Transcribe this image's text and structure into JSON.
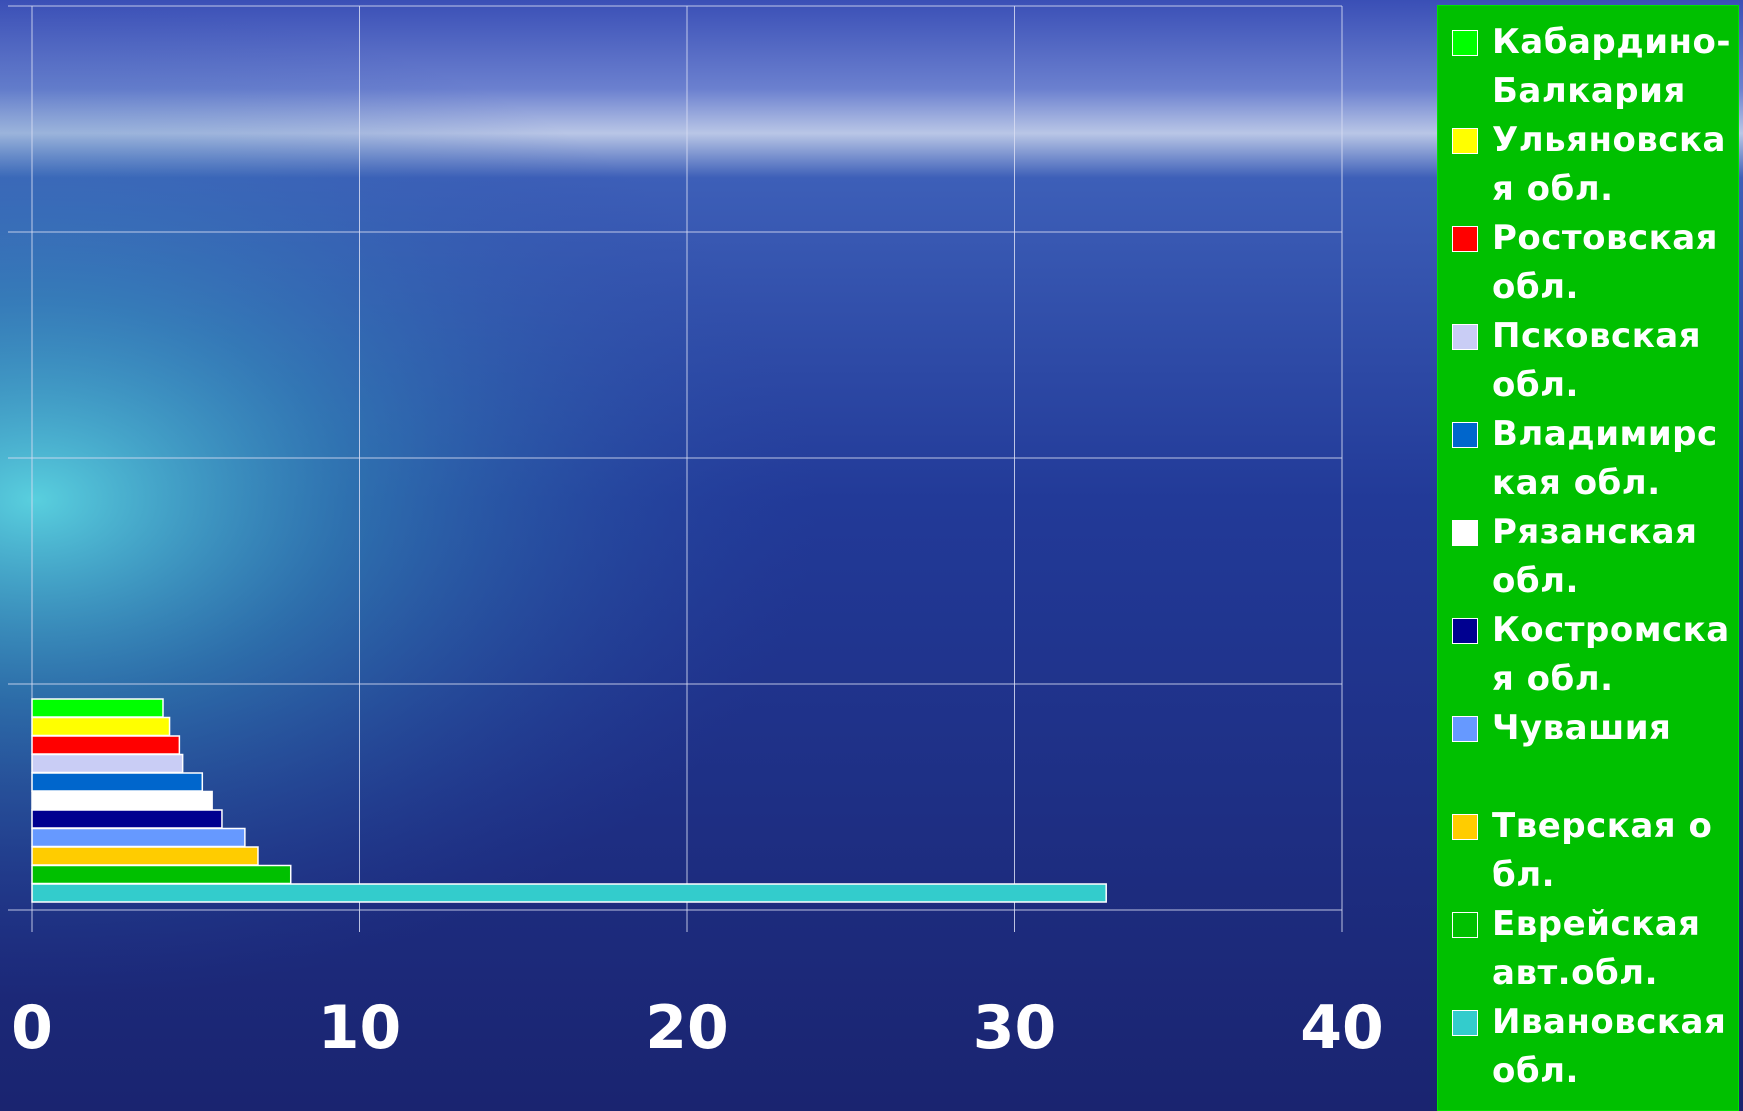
{
  "chart_data": {
    "type": "bar",
    "orientation": "horizontal",
    "xlim": [
      0,
      40
    ],
    "x_ticks": [
      "0",
      "10",
      "20",
      "30",
      "40"
    ],
    "grid": true,
    "legend_position": "right",
    "series": [
      {
        "name": "Кабардино-Балкария",
        "value": 4.0,
        "color": "#00ff00"
      },
      {
        "name": "Ульяновская обл.",
        "value": 4.2,
        "color": "#ffff00"
      },
      {
        "name": "Ростовская обл.",
        "value": 4.5,
        "color": "#ff0000"
      },
      {
        "name": "Псковская обл.",
        "value": 4.6,
        "color": "#c9cdf5"
      },
      {
        "name": "Владимирская обл.",
        "value": 5.2,
        "color": "#0066cc"
      },
      {
        "name": "Рязанская обл.",
        "value": 5.5,
        "color": "#ffffff"
      },
      {
        "name": "Костромская обл.",
        "value": 5.8,
        "color": "#000090"
      },
      {
        "name": "Чувашия",
        "value": 6.5,
        "color": "#6699ff"
      },
      {
        "name": "Тверская обл.",
        "value": 6.9,
        "color": "#ffcc00"
      },
      {
        "name": "Еврейская авт.обл.",
        "value": 7.9,
        "color": "#00c000"
      },
      {
        "name": "Ивановская обл.",
        "value": 32.8,
        "color": "#33cccc"
      }
    ]
  }
}
